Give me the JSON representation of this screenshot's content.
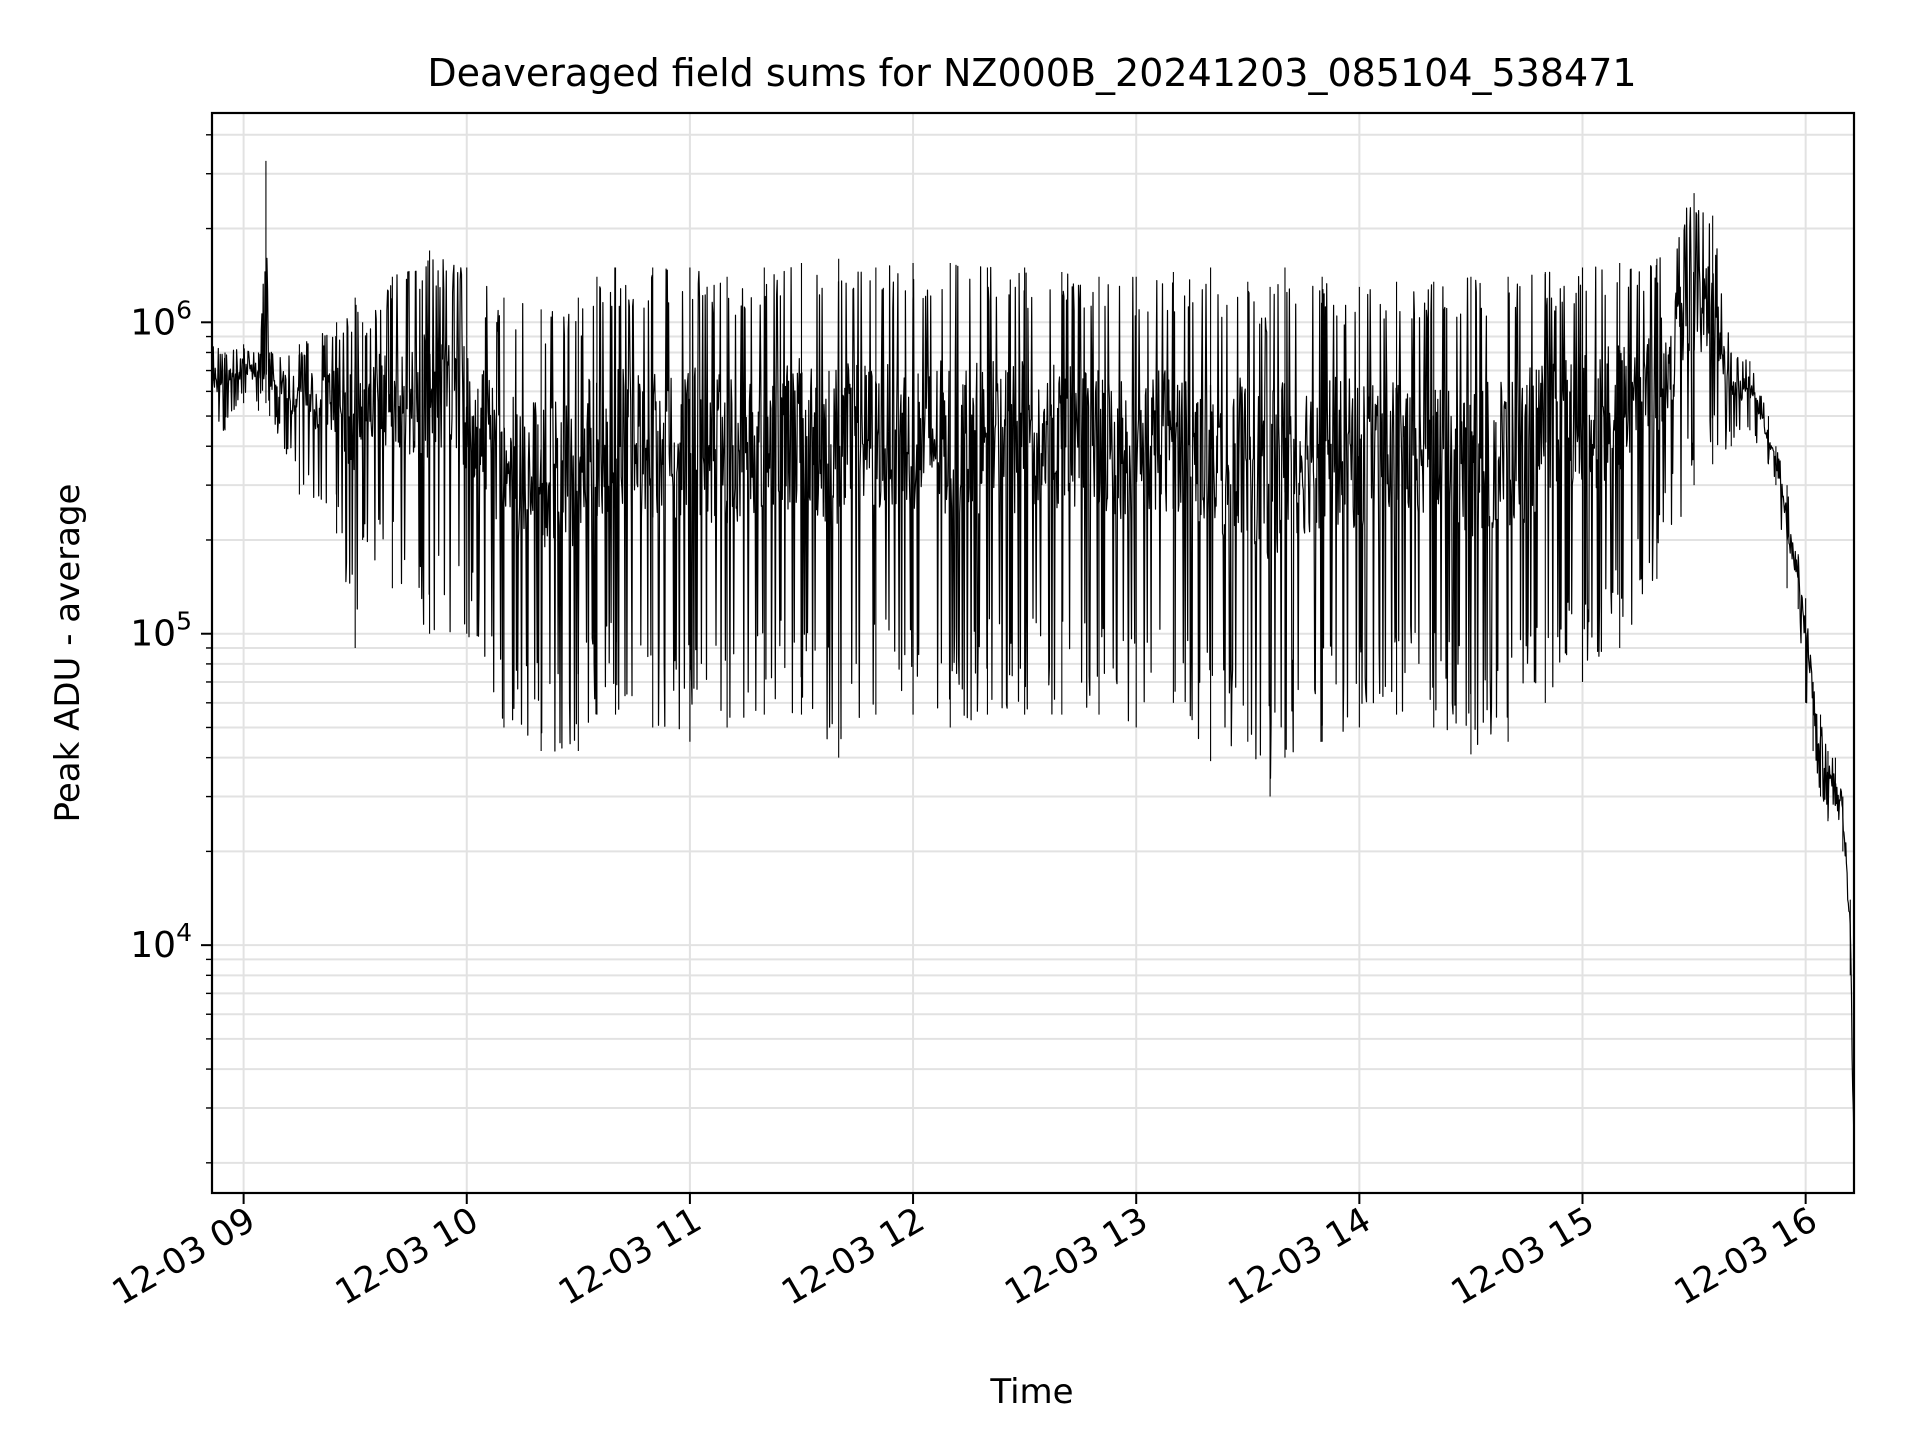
{
  "chart_data": {
    "type": "line",
    "title": "Deaveraged field sums for NZ000B_20241203_085104_538471",
    "xlabel": "Time",
    "ylabel": "Peak ADU - average",
    "yscale": "log",
    "ylim": [
      1600,
      4700000
    ],
    "xlim": [
      "2024-12-03 08:51:30",
      "2024-12-03 16:13:00"
    ],
    "x_tick_labels": [
      "12-03 09",
      "12-03 10",
      "12-03 11",
      "12-03 12",
      "12-03 13",
      "12-03 14",
      "12-03 15",
      "12-03 16"
    ],
    "x_tick_times": [
      "2024-12-03 09:00",
      "2024-12-03 10:00",
      "2024-12-03 11:00",
      "2024-12-03 12:00",
      "2024-12-03 13:00",
      "2024-12-03 14:00",
      "2024-12-03 15:00",
      "2024-12-03 16:00"
    ],
    "y_tick_values": [
      10000,
      100000,
      1000000
    ],
    "y_tick_labels": [
      {
        "base": "10",
        "exp": "4"
      },
      {
        "base": "10",
        "exp": "5"
      },
      {
        "base": "10",
        "exp": "6"
      }
    ],
    "grid": "on",
    "line_color": "#000000",
    "series": [
      {
        "x": [
          "08:51:30",
          "08:55",
          "09:00",
          "09:04",
          "09:06",
          "09:07",
          "09:15",
          "09:25",
          "09:30",
          "09:32",
          "09:40",
          "09:50",
          "10:00",
          "10:10",
          "10:20",
          "10:30",
          "10:35",
          "10:40",
          "10:50",
          "11:00",
          "11:10",
          "11:20",
          "11:30",
          "11:40",
          "11:50",
          "12:00",
          "12:10",
          "12:20",
          "12:30",
          "12:40",
          "12:50",
          "13:00",
          "13:10",
          "13:20",
          "13:30",
          "13:36",
          "13:40",
          "13:50",
          "14:00",
          "14:10",
          "14:20",
          "14:30",
          "14:40",
          "14:50",
          "15:00",
          "15:10",
          "15:20",
          "15:30",
          "15:35",
          "15:40",
          "15:45",
          "15:50",
          "15:52",
          "15:55",
          "15:58",
          "16:00",
          "16:02",
          "16:04",
          "16:06",
          "16:08",
          "16:10",
          "16:12",
          "16:13"
        ],
        "y_peak": [
          880000,
          800000,
          850000,
          800000,
          3300000,
          800000,
          850000,
          1000000,
          1200000,
          1000000,
          1400000,
          1700000,
          1500000,
          1200000,
          1100000,
          1200000,
          1400000,
          1500000,
          1500000,
          1500000,
          1400000,
          1500000,
          1550000,
          1600000,
          1500000,
          1550000,
          1550000,
          1500000,
          1500000,
          1450000,
          1400000,
          1400000,
          1450000,
          1500000,
          1350000,
          1300000,
          1500000,
          1400000,
          1300000,
          1350000,
          1350000,
          1400000,
          1400000,
          1450000,
          1500000,
          1550000,
          1600000,
          2600000,
          2200000,
          800000,
          750000,
          500000,
          400000,
          300000,
          180000,
          130000,
          70000,
          55000,
          42000,
          40000,
          30000,
          14000,
          2200
        ],
        "y_trough": [
          450000,
          450000,
          550000,
          520000,
          550000,
          500000,
          280000,
          210000,
          90000,
          200000,
          140000,
          100000,
          100000,
          50000,
          42000,
          42000,
          55000,
          55000,
          50000,
          45000,
          50000,
          55000,
          55000,
          40000,
          55000,
          55000,
          50000,
          55000,
          55000,
          55000,
          55000,
          50000,
          60000,
          39000,
          45000,
          30000,
          40000,
          45000,
          50000,
          55000,
          50000,
          41000,
          45000,
          60000,
          70000,
          90000,
          150000,
          300000,
          350000,
          400000,
          450000,
          350000,
          300000,
          140000,
          120000,
          60000,
          42000,
          30000,
          25000,
          28000,
          20000,
          8000,
          2200
        ]
      }
    ]
  }
}
